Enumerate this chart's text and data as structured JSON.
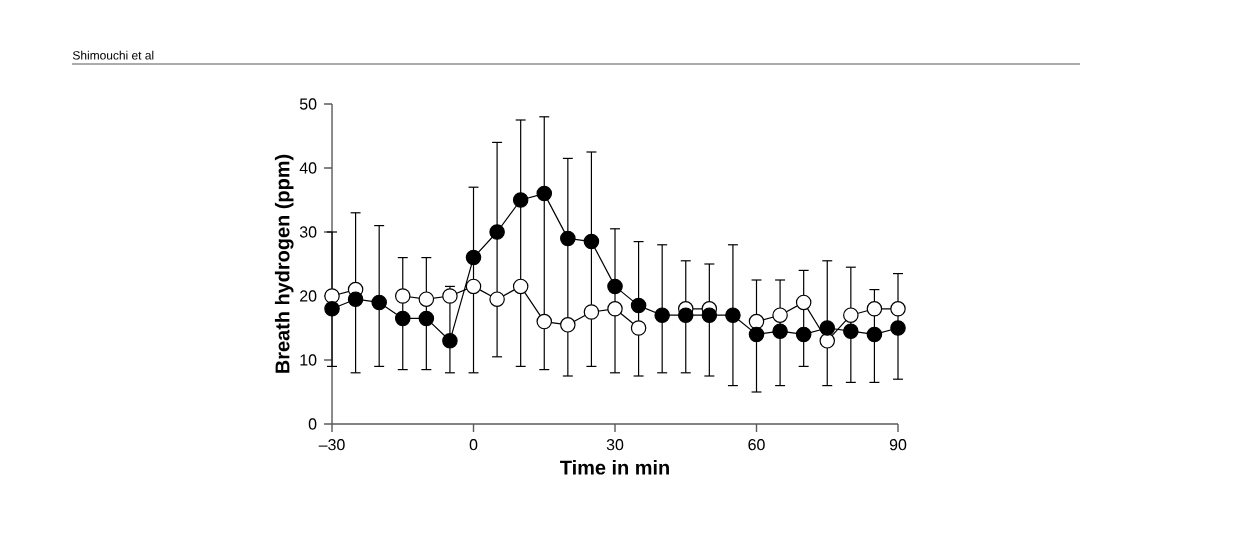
{
  "chart_data": {
    "type": "line",
    "xlabel": "Time in min",
    "ylabel": "Breath hydrogen (ppm)",
    "annotations": [
      "Shimouchi et al"
    ],
    "x": [
      -30,
      -25,
      -20,
      -15,
      -10,
      -5,
      0,
      5,
      10,
      15,
      20,
      25,
      30,
      35,
      40,
      45,
      50,
      55,
      60,
      65,
      70,
      75,
      80,
      85,
      90
    ],
    "series": [
      {
        "color": "#ffffff",
        "values": [
          20,
          21,
          null,
          20,
          19.5,
          20,
          21.5,
          19.5,
          21.5,
          16,
          15.5,
          17.5,
          18,
          15,
          null,
          18,
          18,
          null,
          16,
          17,
          19,
          13,
          17,
          18,
          18
        ]
      },
      {
        "color": "#000000",
        "values": [
          18,
          19.5,
          19,
          16.5,
          16.5,
          13,
          26,
          30,
          35,
          36,
          29,
          28.5,
          21.5,
          18.5,
          17,
          17,
          17,
          17,
          14,
          14.5,
          14,
          15,
          14.5,
          14,
          15
        ],
        "errors": [
          [
            9,
            30
          ],
          [
            8,
            33
          ],
          [
            9,
            31
          ],
          [
            8.5,
            26
          ],
          [
            8.5,
            26
          ],
          [
            8,
            21.5
          ],
          [
            8,
            37
          ],
          [
            10.5,
            44
          ],
          [
            9,
            47.5
          ],
          [
            8.5,
            48
          ],
          [
            7.5,
            41.5
          ],
          [
            9,
            42.5
          ],
          [
            8,
            30.5
          ],
          [
            7.5,
            28.5
          ],
          [
            8,
            28
          ],
          [
            8,
            25.5
          ],
          [
            7.5,
            25
          ],
          [
            6,
            28
          ],
          [
            5,
            22.5
          ],
          [
            6,
            22.5
          ],
          [
            9,
            24
          ],
          [
            6,
            25.5
          ],
          [
            6.5,
            24.5
          ],
          [
            6.5,
            21
          ],
          [
            7,
            23.5
          ]
        ]
      }
    ],
    "marker": "circle",
    "line_style": "solid",
    "xlim": [
      -30,
      90
    ],
    "xticks": [
      {
        "value": -30,
        "label": "–30"
      },
      0,
      30,
      60,
      90
    ],
    "ylim": [
      0,
      50
    ],
    "yticks": [
      0,
      10,
      20,
      30,
      40,
      50
    ]
  }
}
